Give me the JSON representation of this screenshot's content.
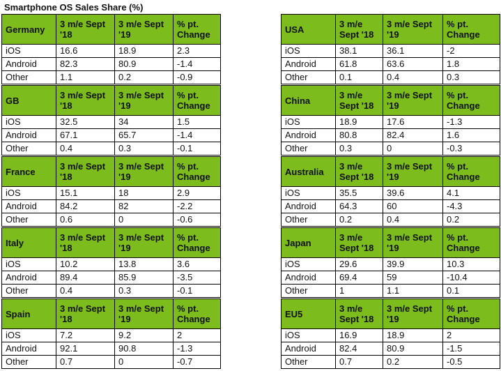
{
  "title": "Smartphone OS Sales Share (%)",
  "headers": {
    "col2": "3 m/e Sept '18",
    "col3": "3 m/e Sept '19",
    "col4": "% pt. Change"
  },
  "left": [
    {
      "country": "Germany",
      "rows": [
        [
          "iOS",
          "16.6",
          "18.9",
          "2.3"
        ],
        [
          "Android",
          "82.3",
          "80.9",
          "-1.4"
        ],
        [
          "Other",
          "1.1",
          "0.2",
          "-0.9"
        ]
      ]
    },
    {
      "country": "GB",
      "rows": [
        [
          "iOS",
          "32.5",
          "34",
          "1.5"
        ],
        [
          "Android",
          "67.1",
          "65.7",
          "-1.4"
        ],
        [
          "Other",
          "0.4",
          "0.3",
          "-0.1"
        ]
      ]
    },
    {
      "country": "France",
      "rows": [
        [
          "iOS",
          "15.1",
          "18",
          "2.9"
        ],
        [
          "Android",
          "84.2",
          "82",
          "-2.2"
        ],
        [
          "Other",
          "0.6",
          "0",
          "-0.6"
        ]
      ]
    },
    {
      "country": "Italy",
      "rows": [
        [
          "iOS",
          "10.2",
          "13.8",
          "3.6"
        ],
        [
          "Android",
          "89.4",
          "85.9",
          "-3.5"
        ],
        [
          "Other",
          "0.4",
          "0.3",
          "-0.1"
        ]
      ]
    },
    {
      "country": "Spain",
      "rows": [
        [
          "iOS",
          "7.2",
          "9.2",
          "2"
        ],
        [
          "Android",
          "92.1",
          "90.8",
          "-1.3"
        ],
        [
          "Other",
          "0.7",
          "0",
          "-0.7"
        ]
      ]
    }
  ],
  "right": [
    {
      "country": "USA",
      "rows": [
        [
          "iOS",
          "38.1",
          "36.1",
          "-2"
        ],
        [
          "Android",
          "61.8",
          "63.6",
          "1.8"
        ],
        [
          "Other",
          "0.1",
          "0.4",
          "0.3"
        ]
      ]
    },
    {
      "country": "China",
      "rows": [
        [
          "iOS",
          "18.9",
          "17.6",
          "-1.3"
        ],
        [
          "Android",
          "80.8",
          "82.4",
          "1.6"
        ],
        [
          "Other",
          "0.3",
          "0",
          "-0.3"
        ]
      ]
    },
    {
      "country": "Australia",
      "rows": [
        [
          "iOS",
          "35.5",
          "39.6",
          "4.1"
        ],
        [
          "Android",
          "64.3",
          "60",
          "-4.3"
        ],
        [
          "Other",
          "0.2",
          "0.4",
          "0.2"
        ]
      ]
    },
    {
      "country": "Japan",
      "rows": [
        [
          "iOS",
          "29.6",
          "39.9",
          "10.3"
        ],
        [
          "Android",
          "69.4",
          "59",
          "-10.4"
        ],
        [
          "Other",
          "1",
          "1.1",
          "0.1"
        ]
      ]
    },
    {
      "country": "EU5",
      "rows": [
        [
          "iOS",
          "16.9",
          "18.9",
          "2"
        ],
        [
          "Android",
          "82.4",
          "80.9",
          "-1.5"
        ],
        [
          "Other",
          "0.7",
          "0.2",
          "-0.5"
        ]
      ]
    }
  ],
  "colors": {
    "header_green": "#7cbc1c",
    "border": "#000000"
  }
}
